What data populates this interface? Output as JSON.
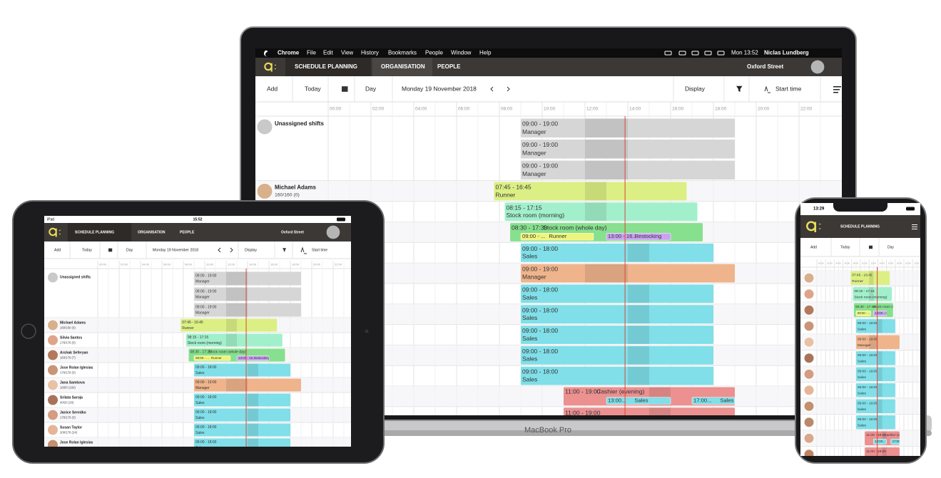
{
  "menubar": {
    "app": "Chrome",
    "menus": [
      "File",
      "Edit",
      "View",
      "History",
      "Bookmarks",
      "People",
      "Window",
      "Help"
    ],
    "clock": "Mon 13:52",
    "user": "Niclas Lundberg"
  },
  "nav": {
    "tabs": [
      "SCHEDULE PLANNING",
      "ORGANISATION",
      "PEOPLE"
    ],
    "location": "Oxford Street"
  },
  "toolbar": {
    "add": "Add",
    "today": "Today",
    "view": "Day",
    "date": "Monday 19 November 2018",
    "display": "Display",
    "sort": "Start time"
  },
  "hours": [
    "00:00",
    "02:00",
    "04:00",
    "06:00",
    "08:00",
    "10:00",
    "12:00",
    "14:00",
    "16:00",
    "18:00",
    "20:00",
    "22:00"
  ],
  "schedule": [
    {
      "name": "Unassigned shifts",
      "shifts": [
        {
          "time": "09:00 - 19:00",
          "role": "Manager",
          "color": "#d6d6d6"
        },
        {
          "time": "09:00 - 19:00",
          "role": "Manager",
          "color": "#d6d6d6"
        },
        {
          "time": "09:00 - 19:00",
          "role": "Manager",
          "color": "#d6d6d6"
        }
      ]
    },
    {
      "name": "Michael Adams",
      "hours": "160/160 (0)",
      "shifts": [
        {
          "time": "07:45 - 16:45",
          "role": "Runner",
          "color": "#dcef84"
        }
      ]
    },
    {
      "name": "Silvia Santos",
      "hours": "176/176 (0)",
      "shifts": [
        {
          "time": "08:15 - 17:15",
          "role": "Stock room (morning)",
          "color": "#a1f0cb"
        }
      ]
    },
    {
      "name": "Arshak Seferyan",
      "hours": "183/176 (7)",
      "shifts": [
        {
          "time": "08:30 - 17:30",
          "role": "Stock room (whole day)",
          "color": "#86e08e",
          "subs": [
            {
              "time": "09:00 - ...",
              "role": "Runner",
              "color": "#eef57c"
            },
            {
              "time": "13:00 - 16...",
              "role": "Restocking",
              "color": "#c9a3f2"
            }
          ]
        }
      ]
    },
    {
      "name": "Jose Rolan Iglesias",
      "hours": "176/176 (0)",
      "shifts": [
        {
          "time": "09:00 - 18:00",
          "role": "Sales",
          "color": "#80dfe8"
        }
      ]
    },
    {
      "name": "Jana Samkova",
      "hours": "160/0 (160)",
      "shifts": [
        {
          "time": "09:00 - 19:00",
          "role": "Manager",
          "color": "#efb48c"
        }
      ]
    },
    {
      "name": "Srilata Saroja",
      "hours": "40/20 (20)",
      "shifts": [
        {
          "time": "09:00 - 18:00",
          "role": "Sales",
          "color": "#80dfe8"
        }
      ]
    },
    {
      "name": "Janice Seredko",
      "hours": "176/176 (0)",
      "shifts": [
        {
          "time": "09:00 - 18:00",
          "role": "Sales",
          "color": "#80dfe8"
        }
      ]
    },
    {
      "name": "Susan Taylor",
      "hours": "200/176 (24)",
      "shifts": [
        {
          "time": "09:00 - 18:00",
          "role": "Sales",
          "color": "#80dfe8"
        }
      ]
    },
    {
      "name": "Jose Rolan Iglesias",
      "shifts": [
        {
          "time": "09:00 - 18:00",
          "role": "Sales",
          "color": "#80dfe8"
        }
      ]
    },
    {
      "shifts": [
        {
          "time": "09:00 - 18:00",
          "role": "Sales",
          "color": "#80dfe8"
        }
      ]
    },
    {
      "shifts": [
        {
          "time": "11:00 - 19:00",
          "role": "Cashier (evening)",
          "color": "#ec9090",
          "subs": [
            {
              "time": "13:00...",
              "role": "Sales",
              "color": "#80dfe8"
            },
            {
              "time": "17:00...",
              "role": "Sales",
              "color": "#80dfe8"
            }
          ]
        }
      ]
    },
    {
      "shifts": [
        {
          "time": "11:00 - 19:00",
          "role": "Cashier (evening)",
          "color": "#ec9090"
        }
      ]
    }
  ],
  "laptop_label": "MacBook Pro",
  "tablet_status": {
    "device": "iPad",
    "clock": "15:52"
  },
  "phone_status": {
    "clock": "13:29"
  }
}
